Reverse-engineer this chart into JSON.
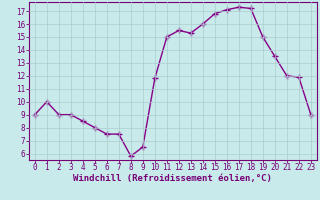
{
  "x": [
    0,
    1,
    2,
    3,
    4,
    5,
    6,
    7,
    8,
    9,
    10,
    11,
    12,
    13,
    14,
    15,
    16,
    17,
    18,
    19,
    20,
    21,
    22,
    23
  ],
  "y": [
    9.0,
    10.0,
    9.0,
    9.0,
    8.5,
    8.0,
    7.5,
    7.5,
    5.8,
    6.5,
    11.8,
    15.0,
    15.5,
    15.3,
    16.0,
    16.8,
    17.1,
    17.3,
    17.2,
    15.0,
    13.5,
    12.0,
    11.9,
    9.0
  ],
  "line_color": "#880088",
  "marker": "+",
  "marker_size": 4,
  "bg_color": "#c8eaea",
  "grid_color": "#aacccc",
  "xlabel": "Windchill (Refroidissement éolien,°C)",
  "ylim": [
    5.5,
    17.7
  ],
  "xlim": [
    -0.5,
    23.5
  ],
  "yticks": [
    6,
    7,
    8,
    9,
    10,
    11,
    12,
    13,
    14,
    15,
    16,
    17
  ],
  "xticks": [
    0,
    1,
    2,
    3,
    4,
    5,
    6,
    7,
    8,
    9,
    10,
    11,
    12,
    13,
    14,
    15,
    16,
    17,
    18,
    19,
    20,
    21,
    22,
    23
  ],
  "tick_label_color": "#770077",
  "axis_color": "#770077",
  "label_fontsize": 6.5,
  "tick_fontsize": 5.5,
  "linewidth": 1.0
}
